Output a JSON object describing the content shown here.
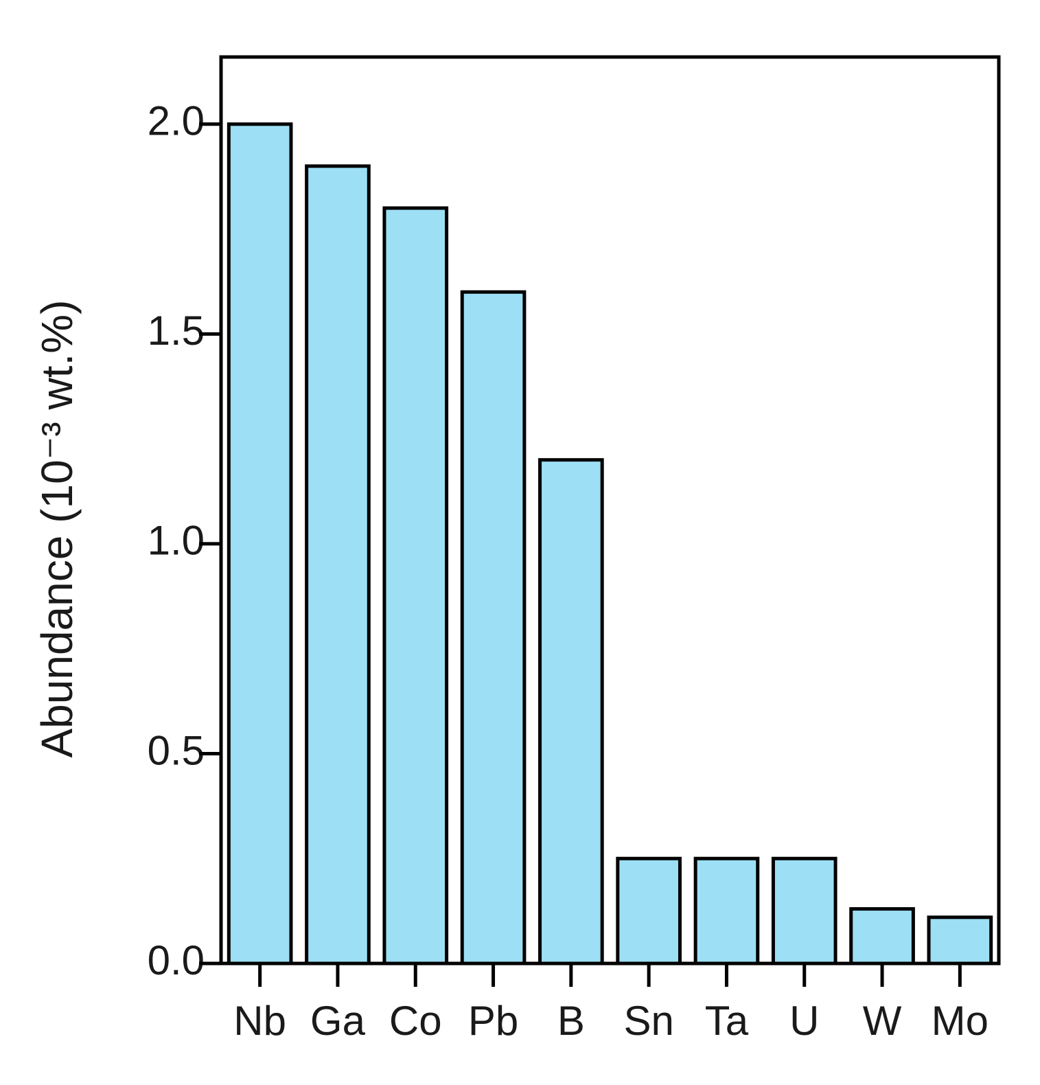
{
  "chart_data": {
    "type": "bar",
    "y_label": "Abundance (10⁻³ wt.%)",
    "categories": [
      "Nb",
      "Ga",
      "Co",
      "Pb",
      "B",
      "Sn",
      "Ta",
      "U",
      "W",
      "Mo"
    ],
    "values": [
      2.0,
      1.9,
      1.8,
      1.6,
      1.2,
      0.25,
      0.25,
      0.25,
      0.13,
      0.11
    ],
    "color": "#9ddff5",
    "ylim": [
      0,
      2.16
    ],
    "yticks": [
      {
        "value": 0,
        "label": "0.0"
      },
      0.5,
      {
        "value": 1,
        "label": "1.0"
      },
      1.5,
      {
        "value": 2,
        "label": "2.0"
      }
    ],
    "grid": false
  }
}
